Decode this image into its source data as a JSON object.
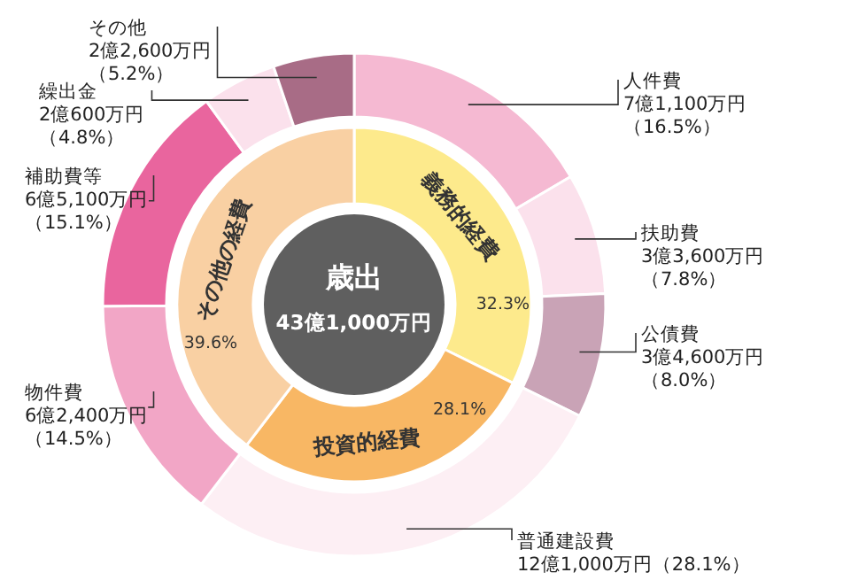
{
  "chart_data": [
    {
      "type": "donut",
      "categories": [
        "人件費",
        "扶助費",
        "公債費",
        "普通建設費",
        "物件費",
        "補助費等",
        "繰出金",
        "その他"
      ],
      "values": [
        16.5,
        7.8,
        8.0,
        28.1,
        14.5,
        15.1,
        4.8,
        5.2
      ],
      "colors": [
        "#f5b9d2",
        "#fbe1ec",
        "#c9a3b6",
        "#fdeff4",
        "#f2a6c6",
        "#e9659e",
        "#fbe1ec",
        "#a86c86"
      ],
      "value_labels": [
        "7億1,100万円（16.5%）",
        "3億3,600万円（7.8%）",
        "3億4,600万円（8.0%）",
        "12億1,000万円（28.1%）",
        "6億2,400万円（14.5%）",
        "6億5,100万円（15.1%）",
        "2億600万円（4.8%）",
        "2億2,600万円（5.2%）"
      ]
    },
    {
      "type": "donut",
      "title": "歳出",
      "subtitle": "43億1,000万円",
      "categories": [
        "義務的経費",
        "投資的経費",
        "その他の経費"
      ],
      "values": [
        32.3,
        28.1,
        39.6
      ],
      "colors": [
        "#fdea8c",
        "#f8b764",
        "#f9d0a3"
      ],
      "value_labels": [
        "32.3%",
        "28.1%",
        "39.6%"
      ]
    }
  ]
}
